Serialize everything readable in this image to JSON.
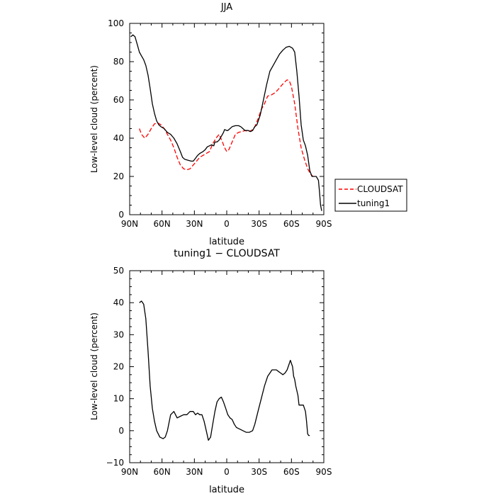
{
  "chart_data": [
    {
      "type": "line",
      "title": "JJA",
      "xlabel": "latitude",
      "ylabel": "Low-level cloud (percent)",
      "xlim": [
        90,
        -90
      ],
      "ylim": [
        0,
        100
      ],
      "xticks": [
        90,
        60,
        30,
        0,
        -30,
        -60,
        -90
      ],
      "xtick_labels": [
        "90N",
        "60N",
        "30N",
        "0",
        "30S",
        "60S",
        "90S"
      ],
      "yticks": [
        0,
        20,
        40,
        60,
        80,
        100
      ],
      "legend_position": "outside-right",
      "series": [
        {
          "name": "CLOUDSAT",
          "color": "#ff0000",
          "dash": "dashed",
          "points": [
            [
              81,
              45
            ],
            [
              79,
              42
            ],
            [
              76,
              40
            ],
            [
              73,
              42
            ],
            [
              70,
              45
            ],
            [
              67,
              47.5
            ],
            [
              64,
              48
            ],
            [
              61,
              47
            ],
            [
              58,
              45
            ],
            [
              55,
              42
            ],
            [
              52,
              39
            ],
            [
              49,
              35
            ],
            [
              46,
              30
            ],
            [
              43,
              26
            ],
            [
              40,
              24
            ],
            [
              37,
              23.5
            ],
            [
              34,
              24
            ],
            [
              31,
              26
            ],
            [
              28,
              28
            ],
            [
              25,
              30
            ],
            [
              22,
              31
            ],
            [
              19,
              32
            ],
            [
              16,
              33
            ],
            [
              13,
              37
            ],
            [
              10,
              40
            ],
            [
              7,
              42
            ],
            [
              4,
              38
            ],
            [
              2,
              35
            ],
            [
              0,
              33
            ],
            [
              -2,
              34
            ],
            [
              -5,
              38
            ],
            [
              -8,
              42
            ],
            [
              -11,
              43
            ],
            [
              -14,
              43.5
            ],
            [
              -17,
              44
            ],
            [
              -20,
              43.5
            ],
            [
              -23,
              44
            ],
            [
              -26,
              46
            ],
            [
              -29,
              50
            ],
            [
              -32,
              55
            ],
            [
              -35,
              58
            ],
            [
              -38,
              62
            ],
            [
              -41,
              62.5
            ],
            [
              -44,
              63.5
            ],
            [
              -47,
              65
            ],
            [
              -50,
              67
            ],
            [
              -53,
              69
            ],
            [
              -56,
              70.5
            ],
            [
              -58,
              70
            ],
            [
              -60,
              67
            ],
            [
              -63,
              58
            ],
            [
              -66,
              45
            ],
            [
              -69,
              35
            ],
            [
              -72,
              29
            ],
            [
              -75,
              24
            ],
            [
              -78,
              21
            ],
            [
              -80,
              20
            ]
          ]
        },
        {
          "name": "tuning1",
          "color": "#000000",
          "dash": "solid",
          "points": [
            [
              89,
              93
            ],
            [
              87,
              94
            ],
            [
              85,
              93
            ],
            [
              83,
              89
            ],
            [
              81,
              85
            ],
            [
              79,
              83
            ],
            [
              77,
              81
            ],
            [
              75,
              78
            ],
            [
              73,
              73
            ],
            [
              71,
              66
            ],
            [
              69,
              58
            ],
            [
              67,
              53
            ],
            [
              65,
              49
            ],
            [
              63,
              47
            ],
            [
              61,
              46
            ],
            [
              58,
              45
            ],
            [
              55,
              43
            ],
            [
              52,
              42
            ],
            [
              49,
              40
            ],
            [
              46,
              37
            ],
            [
              43,
              33
            ],
            [
              41,
              30
            ],
            [
              39,
              29
            ],
            [
              36,
              28.5
            ],
            [
              33,
              28
            ],
            [
              31,
              28
            ],
            [
              29,
              29.5
            ],
            [
              27,
              31
            ],
            [
              25,
              32
            ],
            [
              22,
              33
            ],
            [
              20,
              34
            ],
            [
              18,
              35.5
            ],
            [
              16,
              36
            ],
            [
              14,
              36.5
            ],
            [
              12,
              36
            ],
            [
              11,
              38
            ],
            [
              9,
              38
            ],
            [
              7,
              39
            ],
            [
              5,
              41
            ],
            [
              3,
              43
            ],
            [
              2,
              44.5
            ],
            [
              0,
              44
            ],
            [
              -1,
              44
            ],
            [
              -3,
              45
            ],
            [
              -5,
              46
            ],
            [
              -8,
              46.5
            ],
            [
              -11,
              46.5
            ],
            [
              -13,
              46
            ],
            [
              -15,
              45
            ],
            [
              -17,
              44
            ],
            [
              -20,
              44
            ],
            [
              -22,
              43.5
            ],
            [
              -24,
              44
            ],
            [
              -26,
              46
            ],
            [
              -28,
              47
            ],
            [
              -31,
              52
            ],
            [
              -34,
              60
            ],
            [
              -37,
              68
            ],
            [
              -40,
              75
            ],
            [
              -43,
              78
            ],
            [
              -46,
              81
            ],
            [
              -49,
              84
            ],
            [
              -52,
              86
            ],
            [
              -55,
              87.5
            ],
            [
              -58,
              88
            ],
            [
              -61,
              87
            ],
            [
              -63,
              85
            ],
            [
              -65,
              75
            ],
            [
              -67,
              62
            ],
            [
              -69,
              47
            ],
            [
              -71,
              39
            ],
            [
              -73,
              36
            ],
            [
              -75,
              31
            ],
            [
              -77,
              23
            ],
            [
              -79,
              20
            ],
            [
              -81,
              20
            ],
            [
              -83,
              20
            ],
            [
              -85,
              18
            ],
            [
              -86,
              12
            ],
            [
              -87,
              5
            ],
            [
              -88,
              2
            ]
          ]
        }
      ]
    },
    {
      "type": "line",
      "title": "tuning1 − CLOUDSAT",
      "xlabel": "latitude",
      "ylabel": "Low-level cloud (percent)",
      "xlim": [
        90,
        -90
      ],
      "ylim": [
        -10,
        50
      ],
      "xticks": [
        90,
        60,
        30,
        0,
        -30,
        -60,
        -90
      ],
      "xtick_labels": [
        "90N",
        "60N",
        "30N",
        "0",
        "30S",
        "60S",
        "90S"
      ],
      "yticks": [
        -10,
        0,
        10,
        20,
        30,
        40,
        50
      ],
      "series": [
        {
          "color": "#000000",
          "dash": "solid",
          "points": [
            [
              81,
              40
            ],
            [
              79,
              40.5
            ],
            [
              77,
              39.5
            ],
            [
              75,
              35
            ],
            [
              73,
              25
            ],
            [
              71,
              14
            ],
            [
              69,
              7
            ],
            [
              67,
              3
            ],
            [
              65,
              0
            ],
            [
              62,
              -2
            ],
            [
              59,
              -2.5
            ],
            [
              57,
              -2
            ],
            [
              55,
              0
            ],
            [
              52,
              5
            ],
            [
              49,
              6
            ],
            [
              46,
              4
            ],
            [
              43,
              4.5
            ],
            [
              40,
              5
            ],
            [
              37,
              5
            ],
            [
              34,
              6
            ],
            [
              31,
              6
            ],
            [
              29,
              5
            ],
            [
              27,
              5.5
            ],
            [
              25,
              5
            ],
            [
              23,
              5
            ],
            [
              21,
              3
            ],
            [
              19,
              0
            ],
            [
              17,
              -3
            ],
            [
              15,
              -2
            ],
            [
              13,
              2
            ],
            [
              11,
              6
            ],
            [
              9,
              9
            ],
            [
              7,
              10
            ],
            [
              5,
              10.5
            ],
            [
              3,
              9
            ],
            [
              1,
              7
            ],
            [
              -1,
              5
            ],
            [
              -3,
              4
            ],
            [
              -5,
              3.5
            ],
            [
              -7,
              2
            ],
            [
              -9,
              1
            ],
            [
              -12,
              0.5
            ],
            [
              -15,
              0
            ],
            [
              -18,
              -0.5
            ],
            [
              -21,
              -0.5
            ],
            [
              -24,
              0
            ],
            [
              -26,
              2
            ],
            [
              -29,
              6
            ],
            [
              -32,
              10
            ],
            [
              -35,
              14
            ],
            [
              -38,
              17
            ],
            [
              -40,
              18
            ],
            [
              -42,
              19
            ],
            [
              -44,
              19
            ],
            [
              -46,
              19
            ],
            [
              -48,
              18.5
            ],
            [
              -50,
              18
            ],
            [
              -52,
              17.5
            ],
            [
              -54,
              18
            ],
            [
              -56,
              19
            ],
            [
              -58,
              21
            ],
            [
              -59,
              22
            ],
            [
              -61,
              20
            ],
            [
              -62,
              17
            ],
            [
              -63,
              16
            ],
            [
              -64,
              14
            ],
            [
              -66,
              11
            ],
            [
              -67,
              8
            ],
            [
              -69,
              8
            ],
            [
              -71,
              8
            ],
            [
              -73,
              6
            ],
            [
              -74,
              3
            ],
            [
              -75,
              -1
            ],
            [
              -76,
              -1.5
            ],
            [
              -77,
              -1.5
            ]
          ]
        }
      ]
    }
  ]
}
